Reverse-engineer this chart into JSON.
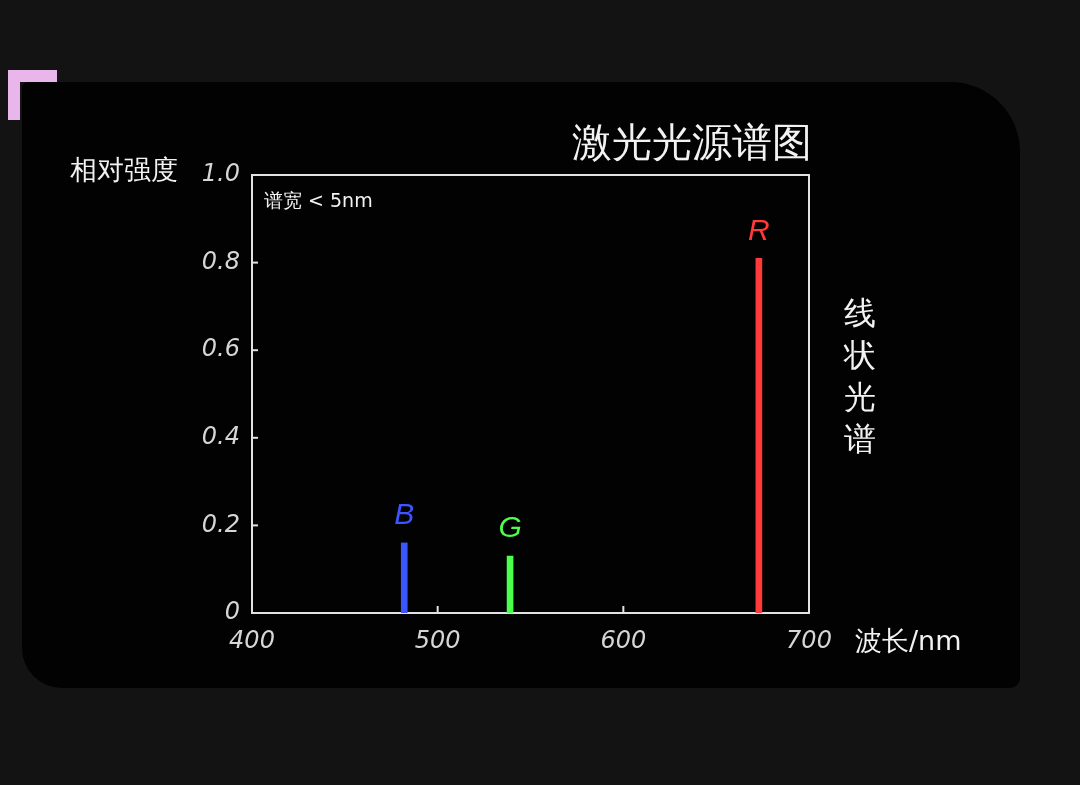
{
  "chart_data": {
    "type": "bar",
    "title": "激光光源谱图",
    "xlabel": "波长/nm",
    "ylabel": "相对强度",
    "annotations": [
      "谱宽 < 5nm",
      "线状光谱"
    ],
    "series": [
      {
        "name": "B",
        "color": "#3b55ff",
        "x": [
          482
        ],
        "values": [
          0.16
        ]
      },
      {
        "name": "G",
        "color": "#4cff4c",
        "x": [
          539
        ],
        "values": [
          0.13
        ]
      },
      {
        "name": "R",
        "color": "#ff3a3a",
        "x": [
          673
        ],
        "values": [
          0.81
        ]
      }
    ],
    "xlim": [
      400,
      700
    ],
    "ylim": [
      0,
      1
    ],
    "xticks": [
      400,
      500,
      600,
      700
    ],
    "yticks": [
      0,
      0.2,
      0.4,
      0.6,
      0.8,
      {
        "value": 1,
        "label": "1.0"
      }
    ]
  }
}
